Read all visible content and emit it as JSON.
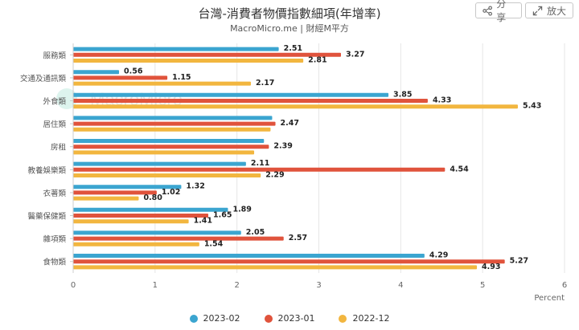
{
  "header": {
    "title": "台灣-消費者物價指數細項(年增率)",
    "subtitle": "MacroMicro.me | 財經M平方",
    "share_label": "分享",
    "expand_label": "放大",
    "share_icon": "share-icon",
    "expand_icon": "expand-icon"
  },
  "watermark": "MacroMicro",
  "chart_data": {
    "type": "bar",
    "orientation": "horizontal",
    "title": "台灣-消費者物價指數細項(年增率)",
    "subtitle": "MacroMicro.me | 財經M平方",
    "xlabel": "Percent",
    "ylabel": "",
    "xlim": [
      0,
      6
    ],
    "xticks": [
      0,
      1,
      2,
      3,
      4,
      5,
      6
    ],
    "grid": true,
    "legend_position": "bottom",
    "categories": [
      "服務類",
      "交通及通訊類",
      "外食類",
      "居住類",
      "房租",
      "教養娛樂類",
      "衣著類",
      "醫藥保健類",
      "雜項類",
      "食物類"
    ],
    "series": [
      {
        "name": "2023-02",
        "color": "#3ba5d0",
        "values": [
          2.51,
          0.56,
          3.85,
          2.43,
          2.33,
          2.11,
          1.32,
          1.89,
          2.05,
          4.29
        ],
        "labels": [
          "2.51",
          "0.56",
          "3.85",
          "",
          "",
          "2.11",
          "1.32",
          "1.89",
          "2.05",
          "4.29"
        ]
      },
      {
        "name": "2023-01",
        "color": "#e0533c",
        "values": [
          3.27,
          1.15,
          4.33,
          2.47,
          2.39,
          4.54,
          1.02,
          1.65,
          2.57,
          5.27
        ],
        "labels": [
          "3.27",
          "1.15",
          "4.33",
          "2.47",
          "2.39",
          "4.54",
          "1.02",
          "1.65",
          "2.57",
          "5.27"
        ]
      },
      {
        "name": "2022-12",
        "color": "#f2b63f",
        "values": [
          2.81,
          2.17,
          5.43,
          2.41,
          2.21,
          2.29,
          0.8,
          1.41,
          1.54,
          4.93
        ],
        "labels": [
          "2.81",
          "2.17",
          "5.43",
          "",
          "",
          "2.29",
          "0.80",
          "1.41",
          "1.54",
          "4.93"
        ]
      }
    ]
  }
}
